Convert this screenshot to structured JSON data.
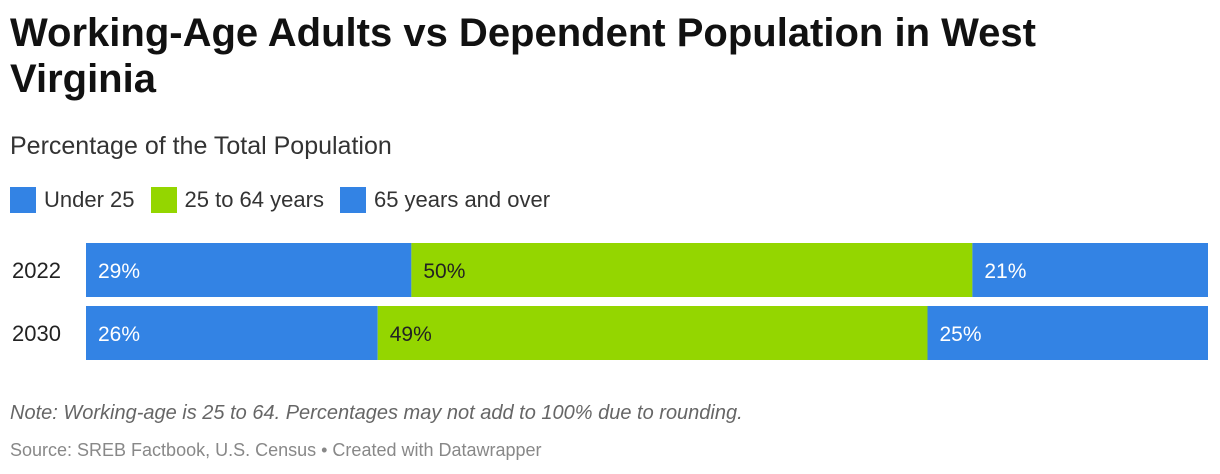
{
  "header": {
    "title": "Working-Age Adults vs Dependent Population in West Virginia",
    "subtitle": "Percentage of the Total Population"
  },
  "colors": {
    "under_25": "#3383e4",
    "working_age": "#94d600",
    "over_65": "#3383e4"
  },
  "legend": [
    {
      "label": "Under 25",
      "color": "#3383e4"
    },
    {
      "label": "25 to 64 years",
      "color": "#94d600"
    },
    {
      "label": "65 years and over",
      "color": "#3383e4"
    }
  ],
  "chart_data": {
    "type": "bar",
    "orientation": "horizontal",
    "stacked": true,
    "categories": [
      "2022",
      "2030"
    ],
    "series": [
      {
        "name": "Under 25",
        "values": [
          29,
          26
        ],
        "color": "#3383e4"
      },
      {
        "name": "25 to 64 years",
        "values": [
          50,
          49
        ],
        "color": "#94d600"
      },
      {
        "name": "65 years and over",
        "values": [
          21,
          25
        ],
        "color": "#3383e4"
      }
    ],
    "labels": [
      [
        "29%",
        "50%",
        "21%"
      ],
      [
        "26%",
        "49%",
        "25%"
      ]
    ],
    "title": "Working-Age Adults vs Dependent Population in West Virginia",
    "subtitle": "Percentage of the Total Population",
    "legend_position": "top-left",
    "grid": false
  },
  "footer": {
    "note": "Note: Working-age is 25 to 64. Percentages may not add to 100% due to rounding.",
    "source": "Source: SREB Factbook, U.S. Census • Created with Datawrapper"
  }
}
